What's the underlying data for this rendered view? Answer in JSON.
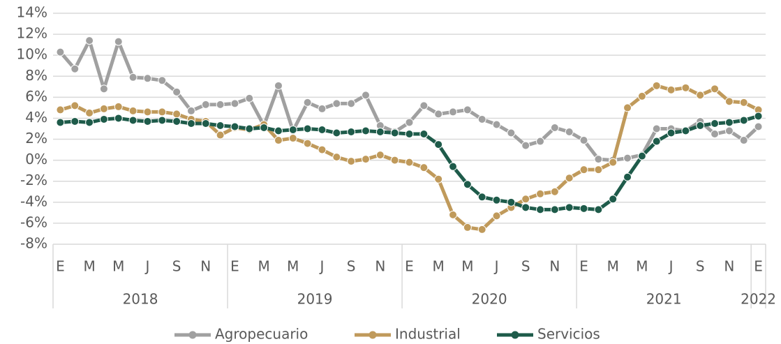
{
  "chart_data": {
    "type": "line",
    "categories": [
      "E",
      null,
      "M",
      null,
      "M",
      null,
      "J",
      null,
      "S",
      null,
      "N",
      null,
      "E",
      null,
      "M",
      null,
      "M",
      null,
      "J",
      null,
      "S",
      null,
      "N",
      null,
      "E",
      null,
      "M",
      null,
      "M",
      null,
      "J",
      null,
      "S",
      null,
      "N",
      null,
      "E",
      null,
      "M",
      null,
      "M",
      null,
      "J",
      null,
      "S",
      null,
      "N",
      null,
      "E"
    ],
    "years": [
      "2018",
      "2019",
      "2020",
      "2021",
      "2022"
    ],
    "series": [
      {
        "name": "Agropecuario",
        "color": "#a0a0a0",
        "values": [
          10.3,
          8.7,
          11.4,
          6.8,
          11.3,
          7.9,
          7.8,
          7.6,
          6.5,
          4.7,
          5.3,
          5.3,
          5.4,
          5.9,
          3.3,
          7.1,
          2.8,
          5.5,
          4.9,
          5.4,
          5.4,
          6.2,
          3.3,
          2.7,
          3.6,
          5.2,
          4.4,
          4.6,
          4.8,
          3.9,
          3.4,
          2.6,
          1.4,
          1.8,
          3.1,
          2.7,
          1.9,
          0.1,
          0.0,
          0.2,
          0.5,
          3.0,
          3.0,
          2.8,
          3.7,
          2.5,
          2.8,
          1.9,
          3.2
        ]
      },
      {
        "name": "Industrial",
        "color": "#c09a5b",
        "values": [
          4.8,
          5.2,
          4.5,
          4.9,
          5.1,
          4.7,
          4.6,
          4.6,
          4.4,
          3.9,
          3.7,
          2.4,
          3.1,
          2.9,
          3.4,
          1.9,
          2.1,
          1.6,
          1.0,
          0.3,
          -0.1,
          0.1,
          0.5,
          0.0,
          -0.2,
          -0.7,
          -1.8,
          -5.2,
          -6.4,
          -6.6,
          -5.3,
          -4.5,
          -3.7,
          -3.2,
          -3.0,
          -1.7,
          -0.9,
          -0.9,
          -0.2,
          5.0,
          6.1,
          7.1,
          6.7,
          6.9,
          6.2,
          6.8,
          5.6,
          5.5,
          4.8
        ]
      },
      {
        "name": "Servicios",
        "color": "#1e5b4a",
        "values": [
          3.6,
          3.7,
          3.6,
          3.9,
          4.0,
          3.8,
          3.7,
          3.8,
          3.7,
          3.5,
          3.5,
          3.3,
          3.2,
          3.0,
          3.1,
          2.8,
          2.9,
          3.0,
          2.9,
          2.6,
          2.7,
          2.8,
          2.7,
          2.6,
          2.5,
          2.5,
          1.5,
          -0.6,
          -2.3,
          -3.5,
          -3.8,
          -4.0,
          -4.5,
          -4.7,
          -4.7,
          -4.5,
          -4.6,
          -4.7,
          -3.7,
          -1.6,
          0.4,
          1.8,
          2.6,
          2.8,
          3.3,
          3.5,
          3.6,
          3.8,
          4.2
        ]
      }
    ],
    "ylim": [
      -8,
      14
    ],
    "yticks": [
      {
        "value": -8,
        "label": "-8%"
      },
      {
        "value": -6,
        "label": "-6%"
      },
      {
        "value": -4,
        "label": "-4%"
      },
      {
        "value": -2,
        "label": "-2%"
      },
      {
        "value": 0,
        "label": "0%"
      },
      {
        "value": 2,
        "label": "2%"
      },
      {
        "value": 4,
        "label": "4%"
      },
      {
        "value": 6,
        "label": "6%"
      },
      {
        "value": 8,
        "label": "8%"
      },
      {
        "value": 10,
        "label": "10%"
      },
      {
        "value": 12,
        "label": "12%"
      },
      {
        "value": 14,
        "label": "14%"
      }
    ],
    "grid": true,
    "legend": "bottom"
  }
}
